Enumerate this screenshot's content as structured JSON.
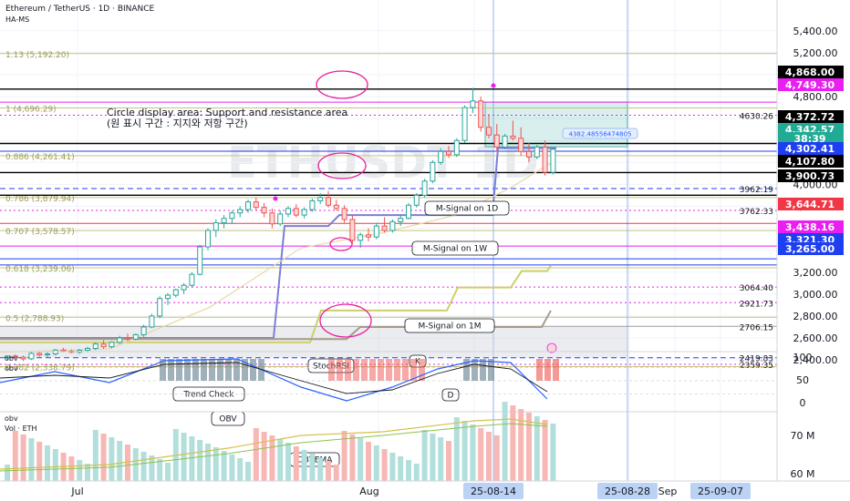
{
  "header": {
    "symbol_line": "Ethereum / TetherUS · 1D · BINANCE",
    "indicator_line": "HA-MS"
  },
  "colors": {
    "up": "#26a69a",
    "down": "#ef5350",
    "price_label_black": "#000000",
    "price_label_blue": "#1e3ff0",
    "price_label_magenta": "#e91ef0",
    "price_label_green": "#22ab94",
    "price_label_red": "#f23645",
    "fib": "#c4c47a",
    "msignal": "#7b7fd6",
    "circle": "#e91e9c",
    "k_line": "#2962ff",
    "d_line": "#ff6d00",
    "obv_line": "#d4c14d",
    "obvema_line": "#8bc34a"
  },
  "chart_data": {
    "type": "candlestick",
    "title": "Ethereum / TetherUS · 1D · BINANCE",
    "x_tick_labels": [
      "Jul",
      "Aug",
      "25-08-14",
      "25-08-28",
      "Sep",
      "25-09-07"
    ],
    "y_tick_labels": [
      "5,400.00",
      "5,200.00",
      "5,000.00",
      "4,800.00",
      "4,600.00",
      "4,400.00",
      "4,200.00",
      "4,000.00",
      "3,800.00",
      "3,600.00",
      "3,400.00",
      "3,200.00",
      "3,000.00",
      "2,800.00",
      "2,600.00",
      "2,400.00"
    ],
    "ylim": [
      2300,
      5500
    ],
    "candles": [
      [
        2420,
        2440,
        2400,
        2435
      ],
      [
        2435,
        2450,
        2415,
        2425
      ],
      [
        2425,
        2440,
        2390,
        2410
      ],
      [
        2410,
        2480,
        2400,
        2460
      ],
      [
        2460,
        2475,
        2430,
        2445
      ],
      [
        2445,
        2470,
        2420,
        2455
      ],
      [
        2455,
        2500,
        2440,
        2490
      ],
      [
        2490,
        2510,
        2470,
        2480
      ],
      [
        2480,
        2495,
        2460,
        2470
      ],
      [
        2470,
        2500,
        2455,
        2488
      ],
      [
        2488,
        2520,
        2470,
        2505
      ],
      [
        2505,
        2560,
        2490,
        2545
      ],
      [
        2545,
        2580,
        2500,
        2520
      ],
      [
        2520,
        2570,
        2505,
        2560
      ],
      [
        2560,
        2620,
        2545,
        2600
      ],
      [
        2600,
        2640,
        2570,
        2590
      ],
      [
        2590,
        2640,
        2580,
        2630
      ],
      [
        2630,
        2720,
        2610,
        2700
      ],
      [
        2700,
        2820,
        2690,
        2800
      ],
      [
        2800,
        2980,
        2780,
        2960
      ],
      [
        2960,
        3010,
        2900,
        2990
      ],
      [
        2990,
        3050,
        2970,
        3040
      ],
      [
        3040,
        3100,
        3000,
        3080
      ],
      [
        3080,
        3200,
        3060,
        3180
      ],
      [
        3180,
        3450,
        3170,
        3430
      ],
      [
        3430,
        3600,
        3400,
        3580
      ],
      [
        3580,
        3680,
        3520,
        3650
      ],
      [
        3650,
        3720,
        3600,
        3690
      ],
      [
        3690,
        3760,
        3640,
        3740
      ],
      [
        3740,
        3800,
        3700,
        3770
      ],
      [
        3770,
        3860,
        3740,
        3840
      ],
      [
        3840,
        3880,
        3760,
        3790
      ],
      [
        3790,
        3830,
        3700,
        3740
      ],
      [
        3740,
        3780,
        3600,
        3640
      ],
      [
        3640,
        3760,
        3620,
        3730
      ],
      [
        3730,
        3800,
        3700,
        3780
      ],
      [
        3780,
        3820,
        3700,
        3720
      ],
      [
        3720,
        3790,
        3690,
        3770
      ],
      [
        3770,
        3870,
        3750,
        3850
      ],
      [
        3850,
        3920,
        3820,
        3880
      ],
      [
        3880,
        3940,
        3790,
        3810
      ],
      [
        3810,
        3860,
        3760,
        3780
      ],
      [
        3780,
        3810,
        3650,
        3680
      ],
      [
        3680,
        3720,
        3460,
        3490
      ],
      [
        3490,
        3560,
        3420,
        3540
      ],
      [
        3540,
        3600,
        3480,
        3520
      ],
      [
        3520,
        3650,
        3500,
        3620
      ],
      [
        3620,
        3700,
        3560,
        3580
      ],
      [
        3580,
        3680,
        3560,
        3660
      ],
      [
        3660,
        3720,
        3620,
        3690
      ],
      [
        3690,
        3830,
        3680,
        3810
      ],
      [
        3810,
        3920,
        3790,
        3900
      ],
      [
        3900,
        4050,
        3880,
        4030
      ],
      [
        4030,
        4220,
        4010,
        4200
      ],
      [
        4200,
        4330,
        4180,
        4300
      ],
      [
        4300,
        4350,
        4240,
        4270
      ],
      [
        4270,
        4420,
        4250,
        4400
      ],
      [
        4400,
        4720,
        4380,
        4700
      ],
      [
        4700,
        4880,
        4650,
        4760
      ],
      [
        4760,
        4800,
        4480,
        4520
      ],
      [
        4520,
        4640,
        4420,
        4450
      ],
      [
        4450,
        4550,
        4300,
        4340
      ],
      [
        4340,
        4460,
        4320,
        4440
      ],
      [
        4440,
        4580,
        4400,
        4420
      ],
      [
        4420,
        4520,
        4260,
        4300
      ],
      [
        4300,
        4380,
        4200,
        4250
      ],
      [
        4250,
        4360,
        4230,
        4340
      ],
      [
        4340,
        4400,
        4080,
        4110
      ],
      [
        4110,
        4330,
        4090,
        4320
      ]
    ],
    "annotations": [
      "Circle display area: Support and resistance area",
      "(원 표시 구간 : 지지와 저항 구간)",
      "M-Signal on 1D",
      "M-Signal on 1W",
      "M-Signal on 1M",
      "StochRSI",
      "Trend Check",
      "K",
      "D",
      "OBV",
      "OBVEMA"
    ],
    "fib_levels": [
      {
        "label": "1.13 (5,192.20)",
        "value": 5192.2
      },
      {
        "label": "1 (4,696.29)",
        "value": 4696.29
      },
      {
        "label": "0.886 (4,261.41)",
        "value": 4261.41
      },
      {
        "label": "0.786 (3,879.94)",
        "value": 3879.94
      },
      {
        "label": "0.707 (3,578.57)",
        "value": 3578.57
      },
      {
        "label": "0.618 (3,239.06)",
        "value": 3239.06
      },
      {
        "label": "0.5 (2,788.93)",
        "value": 2788.93
      },
      {
        "label": "0.382 (2,338.79)",
        "value": 2338.79
      }
    ],
    "horizontal_levels": [
      {
        "label": "4630.26",
        "value": 4630.26
      },
      {
        "label": "3962.19",
        "value": 3962.19
      },
      {
        "label": "3762.33",
        "value": 3762.33
      },
      {
        "label": "3064.40",
        "value": 3064.4
      },
      {
        "label": "2921.73",
        "value": 2921.73
      },
      {
        "label": "2706.15",
        "value": 2706.15
      },
      {
        "label": "2419.83",
        "value": 2419.83
      },
      {
        "label": "2359.35",
        "value": 2359.35
      }
    ],
    "price_labels": [
      {
        "text": "4,868.00",
        "value": 4868.0,
        "style": "black"
      },
      {
        "text": "4,749.30",
        "value": 4749.3,
        "style": "magenta"
      },
      {
        "text": "4,372.72",
        "value": 4372.72,
        "style": "black"
      },
      {
        "text": "4,342.57",
        "value": 4342.57,
        "style": "green"
      },
      {
        "text": "38:39",
        "value": 4320,
        "style": "green"
      },
      {
        "text": "4,302.41",
        "value": 4302.41,
        "style": "blue"
      },
      {
        "text": "4,107.80",
        "value": 4107.8,
        "style": "black"
      },
      {
        "text": "3,900.73",
        "value": 3900.73,
        "style": "black"
      },
      {
        "text": "3,644.71",
        "value": 3644.71,
        "style": "red"
      },
      {
        "text": "3,438.16",
        "value": 3438.16,
        "style": "magenta"
      },
      {
        "text": "3,321.30",
        "value": 3321.3,
        "style": "blue"
      },
      {
        "text": "3,265.00",
        "value": 3265.0,
        "style": "blue"
      }
    ],
    "current_price_box": "4382.48556474805",
    "stoch": {
      "label_main": "obv",
      "label_sub": "obv",
      "y_tick_labels": [
        "100",
        "50",
        "0"
      ],
      "ylim": [
        0,
        100
      ]
    },
    "volume": {
      "label_main": "obv",
      "label_sub": "Vol · ETH",
      "y_tick_labels": [
        "70 M",
        "60 M"
      ]
    }
  }
}
